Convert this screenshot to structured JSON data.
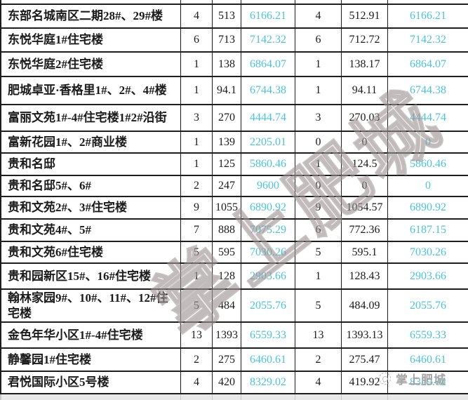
{
  "table": {
    "rows": [
      {
        "name": "东部名城南区二期28#、29#楼",
        "cells": [
          "4",
          "513",
          "6166.21",
          "4",
          "512.91",
          "6166.21"
        ]
      },
      {
        "name": "东悦华庭1#住宅楼",
        "cells": [
          "6",
          "713",
          "7142.32",
          "6",
          "712.72",
          "7142.32"
        ]
      },
      {
        "name": "东悦华庭2#住宅楼",
        "cells": [
          "1",
          "138",
          "6864.07",
          "1",
          "138.17",
          "6864.07"
        ]
      },
      {
        "name": "肥城卓亚·香格里1#、2#、4#楼",
        "cells": [
          "1",
          "94.1",
          "6744.38",
          "1",
          "94.11",
          "6744.38"
        ]
      },
      {
        "name": "富丽文苑1#-4#住宅楼1#2#沿街",
        "cells": [
          "3",
          "270",
          "4444.74",
          "3",
          "270.03",
          "4444.74"
        ]
      },
      {
        "name": "富新花园1#、2#商业楼",
        "cells": [
          "1",
          "139",
          "2205.01",
          "0",
          "0",
          "0"
        ]
      },
      {
        "name": "贵和名邸",
        "cells": [
          "1",
          "125",
          "5860.46",
          "1",
          "124.5",
          "5860.46"
        ]
      },
      {
        "name": "贵和名邸5#、6#",
        "cells": [
          "2",
          "247",
          "9600",
          "0",
          "0",
          "0"
        ]
      },
      {
        "name": "贵和文苑2#、3#住宅楼",
        "cells": [
          "9",
          "1055",
          "6890.92",
          "9",
          "1054.57",
          "6890.92"
        ]
      },
      {
        "name": "贵和文苑4#、5#",
        "cells": [
          "7",
          "888",
          "7075.29",
          "6",
          "772.36",
          "6187.15"
        ]
      },
      {
        "name": "贵和文苑6#住宅楼",
        "cells": [
          "5",
          "595",
          "7030.26",
          "5",
          "595.1",
          "7030.26"
        ]
      },
      {
        "name": "贵和园新区15#、16#住宅楼",
        "cells": [
          "1",
          "128",
          "2903.66",
          "1",
          "128.43",
          "2903.66"
        ]
      },
      {
        "name": "翰林家园9#、10#、11#、12#住宅楼",
        "cells": [
          "5",
          "484",
          "2055.76",
          "5",
          "484.09",
          "2055.76"
        ]
      },
      {
        "name": "金色年华小区1#-4#住宅楼",
        "cells": [
          "13",
          "1393",
          "6559.33",
          "13",
          "1393.13",
          "6559.33"
        ]
      },
      {
        "name": "静馨园1#住宅楼",
        "cells": [
          "2",
          "275",
          "6460.61",
          "2",
          "275.47",
          "6460.61"
        ]
      },
      {
        "name": "君悦国际小区5号楼",
        "cells": [
          "4",
          "420",
          "8329.02",
          "4",
          "419.92",
          "8329.02"
        ]
      }
    ]
  },
  "watermark": {
    "diagonal_text": "掌上肥城",
    "footer_text": "掌上肥城"
  },
  "colors": {
    "price_cyan": "#4bc3da",
    "border_dark": "#1d1d1d",
    "watermark_gray": "#9e9494",
    "footer_gray": "#969696",
    "bottom_strip_gray": "#e9e9e9"
  }
}
